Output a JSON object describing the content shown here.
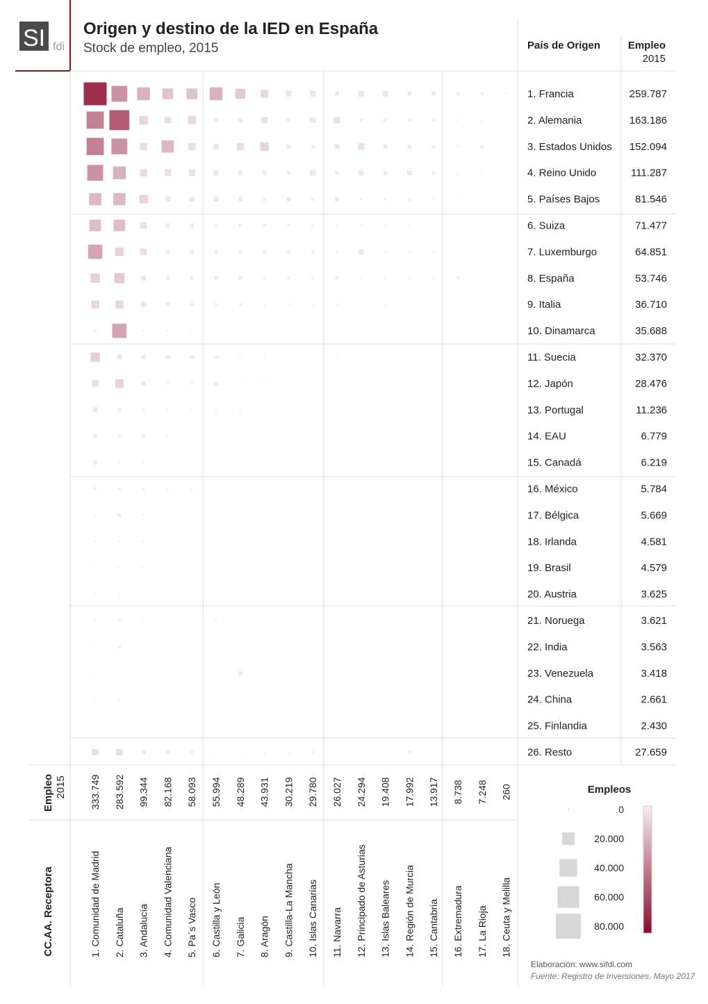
{
  "chart_data": {
    "type": "matrix",
    "title": "Origen y destino de la IED en España",
    "subtitle": "Stock de empleo, 2015",
    "logo": {
      "text": "SI",
      "suffix": "fdi"
    },
    "row_header": "País de Origen",
    "total_header": "Empleo",
    "total_year": "2015",
    "column_header": "CC.AA. Receptora",
    "rows": [
      "1. Francia",
      "2. Alemania",
      "3. Estados Unidos",
      "4. Reino Unido",
      "5. Países Bajos",
      "6. Suiza",
      "7. Luxemburgo",
      "8. España",
      "9. Italia",
      "10. Dinamarca",
      "11. Suecia",
      "12. Japón",
      "13. Portugal",
      "14. EAU",
      "15. Canadá",
      "16. México",
      "17. Bélgica",
      "18. Irlanda",
      "19. Brasil",
      "20. Austria",
      "21. Noruega",
      "22. India",
      "23. Venezuela",
      "24. China",
      "25. Finlandia",
      "26. Resto"
    ],
    "row_totals": {
      "values": [
        259787,
        163186,
        152094,
        111287,
        81546,
        71477,
        64851,
        53746,
        36710,
        35688,
        32370,
        28476,
        11236,
        6779,
        6219,
        5784,
        5669,
        4581,
        4579,
        3625,
        3621,
        3563,
        3418,
        2661,
        2430,
        27659
      ],
      "value_labels": [
        "259.787",
        "163.186",
        "152.094",
        "111.287",
        "81.546",
        "71.477",
        "64.851",
        "53.746",
        "36.710",
        "35.688",
        "32.370",
        "28.476",
        "11.236",
        "6.779",
        "6.219",
        "5.784",
        "5.669",
        "4.581",
        "4.579",
        "3.625",
        "3.621",
        "3.563",
        "3.418",
        "2.661",
        "2.430",
        "27.659"
      ]
    },
    "columns": [
      "1. Comunidad de Madrid",
      "2. Cataluña",
      "3. Andalucía",
      "4. Comunidad Valenciana",
      "5. Pa´s Vasco",
      "6. Castilla y León",
      "7. Galicia",
      "8. Aragón",
      "9. Castilla-La Mancha",
      "10. Islas Canarias",
      "11. Navarra",
      "12. Principado de Asturias",
      "13. Islas Baleares",
      "14. Región de Murcia",
      "15. Cantabria",
      "16. Extremadura",
      "17. La Rioja",
      "18. Ceuta y Melilla"
    ],
    "column_totals": {
      "values": [
        333749,
        283592,
        99344,
        82168,
        58093,
        55994,
        48289,
        43931,
        30219,
        29780,
        26027,
        24294,
        19408,
        17992,
        13917,
        8738,
        7248,
        260
      ],
      "value_labels": [
        "333.749",
        "283.592",
        "99.344",
        "82.168",
        "58.093",
        "55.994",
        "48.289",
        "43.931",
        "30.219",
        "29.780",
        "26.027",
        "24.294",
        "19.408",
        "17.992",
        "13.917",
        "8.738",
        "7.248",
        "260"
      ]
    },
    "values": [
      [
        67000,
        32000,
        21000,
        15000,
        15000,
        21000,
        13000,
        8000,
        4000,
        4000,
        2300,
        4000,
        4000,
        2300,
        2300,
        1600,
        1000,
        500
      ],
      [
        38000,
        51000,
        9400,
        5300,
        8000,
        2300,
        3100,
        5300,
        2300,
        4000,
        5300,
        1600,
        2300,
        1000,
        1000,
        500,
        500,
        200
      ],
      [
        38000,
        32000,
        6500,
        19000,
        6500,
        4000,
        6500,
        9400,
        2300,
        1600,
        3100,
        5300,
        2300,
        2300,
        1600,
        500,
        1600,
        200
      ],
      [
        32000,
        21000,
        6500,
        5300,
        5300,
        3100,
        2300,
        2300,
        1600,
        4000,
        1600,
        3100,
        2300,
        3100,
        1600,
        500,
        500,
        200
      ],
      [
        19000,
        19000,
        9400,
        4000,
        3100,
        3100,
        2300,
        1600,
        2300,
        1600,
        2300,
        1000,
        1000,
        1600,
        500,
        200,
        200,
        100
      ],
      [
        17000,
        17000,
        5300,
        2300,
        2300,
        1600,
        1600,
        1600,
        1000,
        1000,
        500,
        500,
        500,
        500,
        200,
        200,
        200,
        50
      ],
      [
        26000,
        9400,
        5300,
        2300,
        2300,
        1600,
        1600,
        1600,
        1600,
        1000,
        500,
        3100,
        500,
        500,
        500,
        200,
        200,
        50
      ],
      [
        11000,
        13000,
        3100,
        1600,
        1600,
        2300,
        1600,
        1000,
        1000,
        1000,
        1600,
        500,
        500,
        500,
        500,
        1000,
        200,
        50
      ],
      [
        8000,
        8000,
        4000,
        2300,
        1600,
        1000,
        1000,
        500,
        500,
        500,
        500,
        200,
        500,
        200,
        200,
        100,
        100,
        50
      ],
      [
        1000,
        26000,
        500,
        500,
        500,
        200,
        200,
        200,
        200,
        200,
        100,
        100,
        100,
        100,
        50,
        50,
        50,
        0
      ],
      [
        11000,
        3100,
        2300,
        1600,
        1600,
        1000,
        500,
        500,
        200,
        200,
        200,
        200,
        200,
        200,
        100,
        100,
        50,
        0
      ],
      [
        5300,
        9400,
        2300,
        1000,
        1000,
        2300,
        500,
        500,
        200,
        200,
        200,
        200,
        200,
        200,
        100,
        50,
        50,
        0
      ],
      [
        3100,
        1600,
        1000,
        500,
        500,
        500,
        500,
        200,
        200,
        200,
        100,
        100,
        100,
        100,
        50,
        50,
        50,
        0
      ],
      [
        2300,
        1000,
        1600,
        500,
        200,
        200,
        200,
        100,
        100,
        100,
        50,
        50,
        50,
        50,
        50,
        0,
        0,
        0
      ],
      [
        2300,
        500,
        500,
        200,
        200,
        200,
        200,
        100,
        100,
        100,
        100,
        100,
        100,
        50,
        50,
        0,
        0,
        0
      ],
      [
        1000,
        1000,
        1000,
        500,
        500,
        200,
        200,
        200,
        100,
        100,
        100,
        100,
        100,
        100,
        50,
        50,
        0,
        0
      ],
      [
        500,
        1600,
        500,
        200,
        200,
        200,
        200,
        100,
        100,
        100,
        100,
        100,
        100,
        50,
        50,
        0,
        0,
        0
      ],
      [
        500,
        500,
        500,
        200,
        200,
        200,
        200,
        100,
        100,
        100,
        100,
        100,
        100,
        50,
        50,
        0,
        0,
        0
      ],
      [
        500,
        500,
        500,
        200,
        200,
        200,
        200,
        100,
        100,
        100,
        100,
        50,
        50,
        50,
        50,
        0,
        0,
        0
      ],
      [
        500,
        500,
        200,
        200,
        200,
        200,
        100,
        100,
        100,
        100,
        100,
        50,
        50,
        50,
        50,
        0,
        0,
        0
      ],
      [
        500,
        1000,
        200,
        200,
        200,
        500,
        100,
        100,
        100,
        100,
        50,
        50,
        50,
        50,
        50,
        0,
        0,
        0
      ],
      [
        200,
        1600,
        200,
        200,
        200,
        100,
        100,
        100,
        50,
        50,
        50,
        50,
        50,
        50,
        0,
        0,
        0,
        0
      ],
      [
        200,
        200,
        200,
        200,
        200,
        100,
        2300,
        100,
        50,
        50,
        50,
        50,
        50,
        50,
        0,
        0,
        0,
        0
      ],
      [
        200,
        500,
        200,
        100,
        100,
        100,
        100,
        50,
        50,
        50,
        50,
        50,
        50,
        0,
        0,
        0,
        0,
        0
      ],
      [
        200,
        200,
        200,
        100,
        100,
        100,
        100,
        50,
        50,
        50,
        50,
        0,
        0,
        0,
        0,
        0,
        0,
        0
      ],
      [
        5300,
        5300,
        2300,
        1600,
        1600,
        500,
        500,
        500,
        500,
        1000,
        200,
        200,
        200,
        1600,
        200,
        100,
        100,
        0
      ]
    ],
    "legend": {
      "title": "Empleos",
      "ticks": [
        0,
        {
          "value": 20000,
          "label": "20.000"
        },
        {
          "value": 40000,
          "label": "40.000"
        },
        {
          "value": 60000,
          "label": "60.000"
        },
        {
          "value": 80000,
          "label": "80.000"
        }
      ],
      "colors": [
        "#f6eef1",
        "#8b0a2e"
      ]
    },
    "credits": "Elaboración: www.sifdi.com",
    "source": "Fuente: Registro de Inversiones, Mayo 2017"
  }
}
